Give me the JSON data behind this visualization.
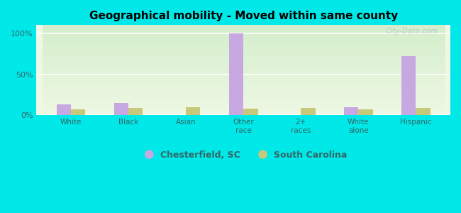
{
  "title": "Geographical mobility - Moved within same county",
  "categories": [
    "White",
    "Black",
    "Asian",
    "Other\nrace",
    "2+\nraces",
    "White\nalone",
    "Hispanic"
  ],
  "chesterfield_values": [
    13,
    15,
    0,
    100,
    0,
    10,
    72
  ],
  "south_carolina_values": [
    7,
    9,
    10,
    8,
    9,
    7,
    9
  ],
  "chesterfield_color": "#c8a8e0",
  "south_carolina_color": "#c8c87a",
  "background_color": "#00e8e8",
  "bar_width": 0.25,
  "ylim": [
    0,
    110
  ],
  "yticks": [
    0,
    50,
    100
  ],
  "ytick_labels": [
    "0%",
    "50%",
    "100%"
  ],
  "legend_labels": [
    "Chesterfield, SC",
    "South Carolina"
  ],
  "watermark": "City-Data.com",
  "grad_top": "#d4eecb",
  "grad_bottom": "#eef8e4"
}
